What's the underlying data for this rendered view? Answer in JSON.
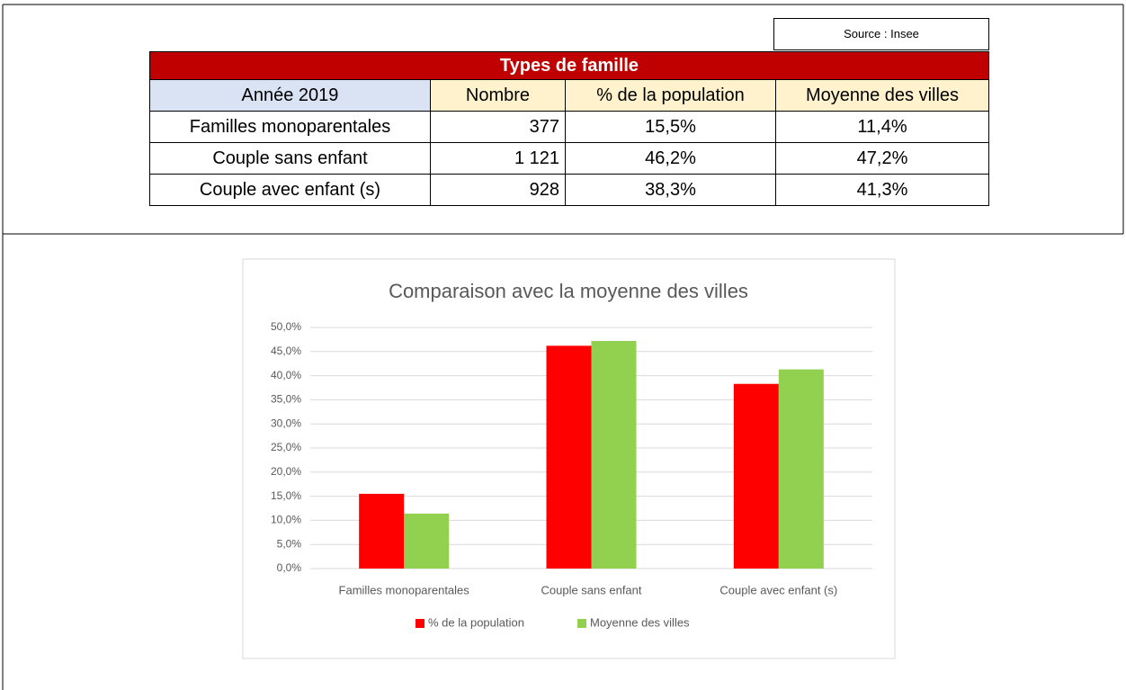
{
  "table": {
    "source": "Source : Insee",
    "title": "Types de famille",
    "headers": [
      "Année 2019",
      "Nombre",
      "% de la population",
      "Moyenne des villes"
    ],
    "rows": [
      [
        "Familles monoparentales",
        "377",
        "15,5%",
        "11,4%"
      ],
      [
        "Couple sans enfant",
        "1 121",
        "46,2%",
        "47,2%"
      ],
      [
        "Couple avec enfant (s)",
        "928",
        "38,3%",
        "41,3%"
      ]
    ]
  },
  "chart_data": {
    "type": "bar",
    "title": "Comparaison avec la moyenne des villes",
    "categories": [
      "Familles monoparentales",
      "Couple sans enfant",
      "Couple avec enfant (s)"
    ],
    "series": [
      {
        "name": "% de la population",
        "color": "#ff0000",
        "values": [
          15.5,
          46.2,
          38.3
        ]
      },
      {
        "name": "Moyenne des villes",
        "color": "#92d050",
        "values": [
          11.4,
          47.2,
          41.3
        ]
      }
    ],
    "ylim": [
      0,
      50
    ],
    "yticks": [
      {
        "value": 0,
        "label": "0,0%"
      },
      {
        "value": 5,
        "label": "5,0%"
      },
      {
        "value": 10,
        "label": "10,0%"
      },
      {
        "value": 15,
        "label": "15,0%"
      },
      {
        "value": 20,
        "label": "20,0%"
      },
      {
        "value": 25,
        "label": "25,0%"
      },
      {
        "value": 30,
        "label": "30,0%"
      },
      {
        "value": 35,
        "label": "35,0%"
      },
      {
        "value": 40,
        "label": "40,0%"
      },
      {
        "value": 45,
        "label": "45,0%"
      },
      {
        "value": 50,
        "label": "50,0%"
      }
    ],
    "grid": true,
    "legend": "bottom"
  }
}
